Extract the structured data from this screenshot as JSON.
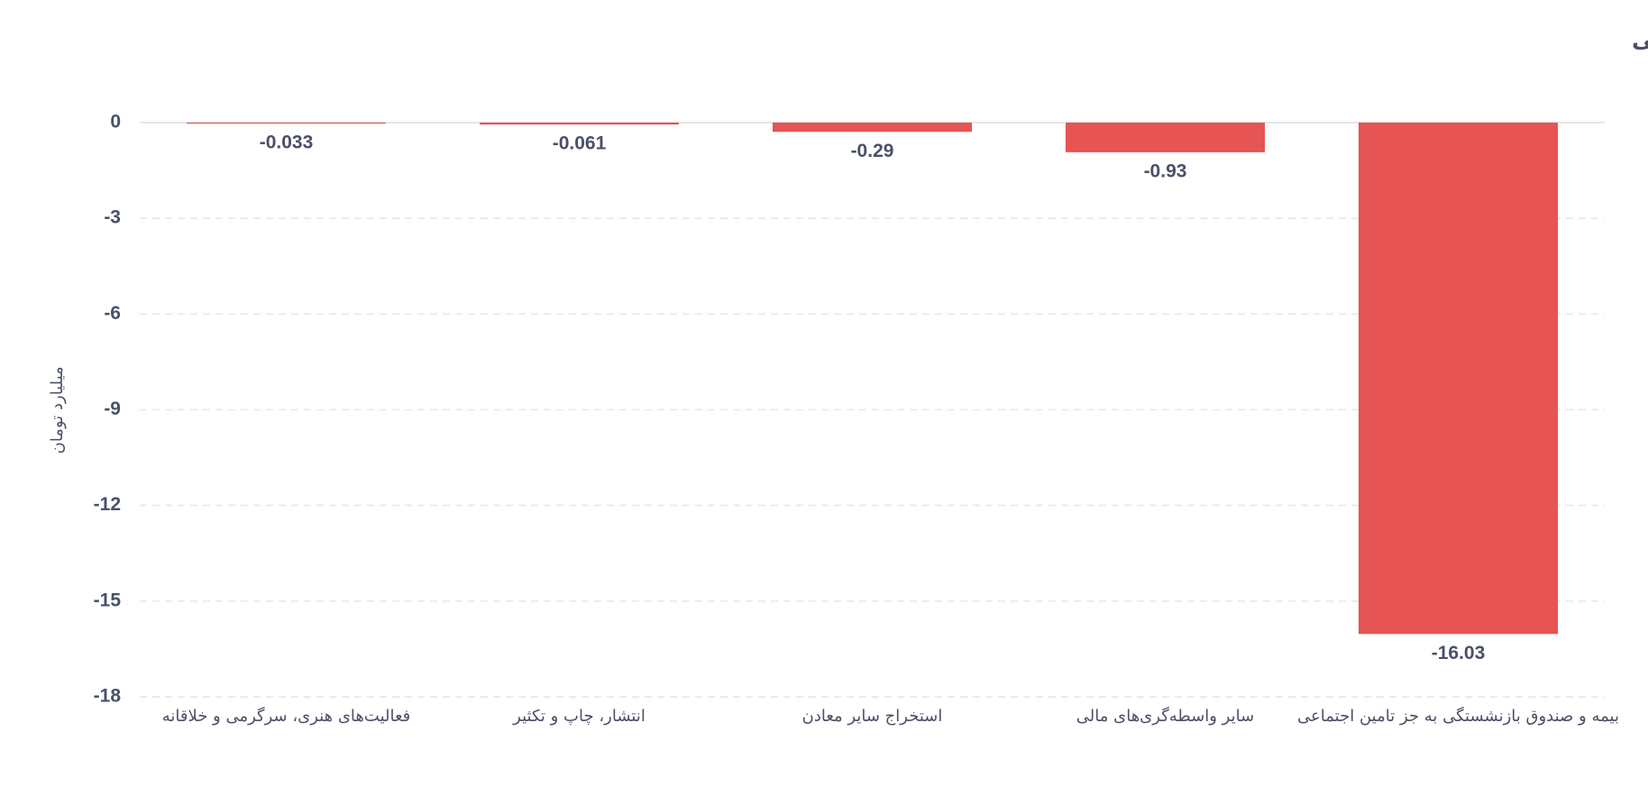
{
  "chart_data": {
    "type": "bar",
    "title": "صنایع با بیشترین خروج پول حقیقی",
    "y_label": "میلیارد تومان",
    "categories": [
      "فعالیت‌های هنری، سرگرمی و خلاقانه",
      "انتشار، چاپ و تکثیر",
      "استخراج سایر معادن",
      "سایر واسطه‌گری‌های مالی",
      "بیمه و صندوق بازنشستگی به جز تامین اجتماعی"
    ],
    "values": [
      -0.033,
      -0.061,
      -0.29,
      -0.93,
      -16.03
    ],
    "color": "#e65454",
    "ylim": [
      -18,
      0
    ],
    "yticks": [
      0,
      -3,
      -6,
      -9,
      -12,
      -15,
      -18
    ],
    "grid": true
  }
}
